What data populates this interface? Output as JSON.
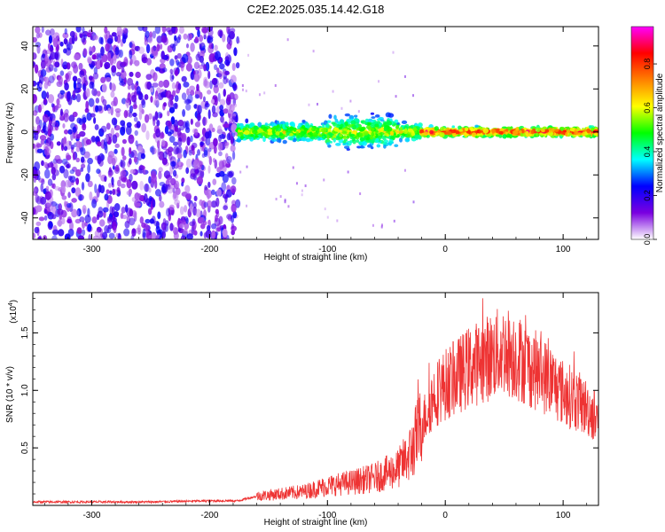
{
  "title": "C2E2.2025.035.14.42.G18",
  "chart_data": [
    {
      "type": "heatmap",
      "xlabel": "Height of straight line (km)",
      "ylabel": "Frequency (Hz)",
      "xlim": [
        -350,
        130
      ],
      "ylim": [
        -50,
        49
      ],
      "xticks": [
        -300,
        -200,
        -100,
        0,
        100
      ],
      "yticks": [
        -40,
        -20,
        0,
        20,
        40
      ],
      "colorbar": {
        "label": "Normalized spectral amplitude",
        "range": [
          0.0,
          0.97
        ],
        "ticks": [
          0.0,
          0.2,
          0.4,
          0.6,
          0.8
        ],
        "colors": [
          "#ffffff",
          "#7a00e0",
          "#0000ff",
          "#00ffff",
          "#00ff00",
          "#ffff00",
          "#ff8000",
          "#ff0000",
          "#ff00ff"
        ]
      },
      "regions": [
        {
          "x_range": [
            -350,
            -176
          ],
          "freq_range": [
            -50,
            49
          ],
          "amplitude_range": [
            0.05,
            0.25
          ]
        },
        {
          "x_range": [
            -176,
            -20
          ],
          "center_freq": 0,
          "half_width": 6,
          "amplitude_range": [
            0.2,
            0.7
          ]
        },
        {
          "x_range": [
            -20,
            130
          ],
          "center_freq": 0,
          "half_width": 3,
          "amplitude_range": [
            0.3,
            0.95
          ]
        }
      ]
    },
    {
      "type": "line",
      "xlabel": "Height of straight line (km)",
      "ylabel": "SNR (10 * v/v)",
      "y_multiplier": "(x10",
      "y_multiplier_exp": "4",
      "y_multiplier_close": ")",
      "xlim": [
        -350,
        130
      ],
      "ylim": [
        0,
        1.85
      ],
      "xticks": [
        -300,
        -200,
        -100,
        0,
        100
      ],
      "yticks": [
        "0.5",
        "1.0",
        "1.5"
      ],
      "ytick_values": [
        0.5,
        1.0,
        1.5
      ],
      "color": "#ee3333",
      "series": [
        {
          "x": [
            -350,
            -300,
            -250,
            -200,
            -176,
            -160,
            -140,
            -120,
            -100,
            -80,
            -60,
            -40,
            -30,
            -20,
            -10,
            0,
            10,
            20,
            30,
            40,
            50,
            60,
            70,
            80,
            90,
            100,
            110,
            120,
            130
          ],
          "y": [
            0.03,
            0.03,
            0.03,
            0.04,
            0.04,
            0.08,
            0.1,
            0.12,
            0.17,
            0.2,
            0.24,
            0.32,
            0.45,
            0.7,
            0.95,
            1.05,
            1.12,
            1.2,
            1.25,
            1.3,
            1.35,
            1.3,
            1.22,
            1.15,
            1.08,
            0.98,
            0.92,
            0.85,
            0.75
          ]
        }
      ]
    }
  ]
}
